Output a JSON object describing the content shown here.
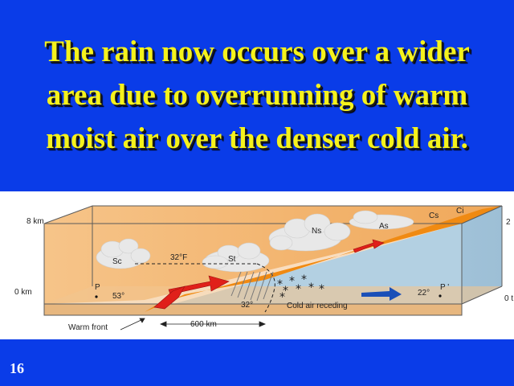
{
  "slide": {
    "title_lines": [
      "The rain now occurs over a wider",
      "area due to overrunning of warm",
      "moist air over the denser cold air."
    ],
    "number": "16"
  },
  "diagram": {
    "axis_labels": {
      "top_left": "8 km",
      "bottom_left": "0 km",
      "top_right": "2",
      "bottom_right": "0 t"
    },
    "clouds": {
      "sc": "Sc",
      "st": "St",
      "ns": "Ns",
      "as": "As",
      "cs": "Cs",
      "ci": "Ci"
    },
    "freezing_line": "32°F",
    "point_p": "P",
    "point_p_prime": "P '",
    "temp_p": "53°",
    "temp_surface": "32°",
    "temp_p_prime": "22°",
    "cold_air_label": "Cold air receding",
    "front_label": "Warm front",
    "distance_label": "600 km",
    "colors": {
      "warm_air": "#f2b872",
      "warm_wedge": "#f08a12",
      "cold_air": "#a9c9de",
      "arrow_red": "#e0201a",
      "arrow_blue": "#1a4fb8"
    }
  }
}
